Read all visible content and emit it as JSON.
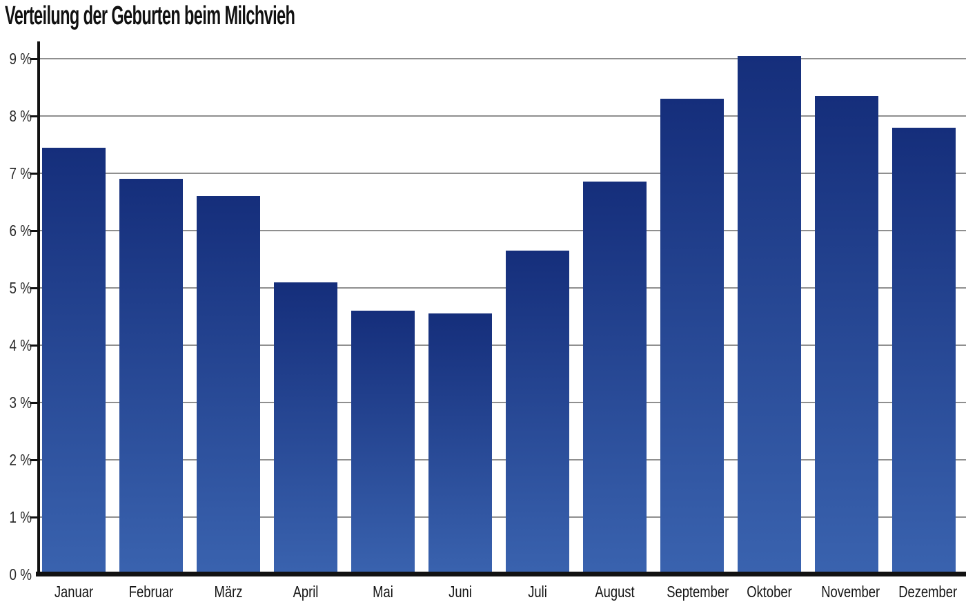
{
  "title": "Verteilung der Geburten beim Milchvieh",
  "chart_data": {
    "type": "bar",
    "title": "Verteilung der Geburten beim Milchvieh",
    "xlabel": "",
    "ylabel": "",
    "unit": "%",
    "categories": [
      "Januar",
      "Februar",
      "März",
      "April",
      "Mai",
      "Juni",
      "Juli",
      "August",
      "September",
      "Oktober",
      "November",
      "Dezember"
    ],
    "values": [
      7.45,
      6.9,
      6.6,
      5.1,
      4.6,
      4.55,
      5.65,
      6.85,
      8.3,
      9.05,
      8.35,
      7.8
    ],
    "ylim": [
      0,
      9.3
    ],
    "ytick_step": 1,
    "ytick_labels": [
      "0 %",
      "1 %",
      "2 %",
      "3 %",
      "4 %",
      "5 %",
      "6 %",
      "7 %",
      "8 %",
      "9 %"
    ],
    "grid": true,
    "legend": false,
    "colors": {
      "bar_gradient_top": "#152e7b",
      "bar_gradient_bottom": "#3a63af",
      "gridline": "#8f8f8f",
      "axis": "#121212",
      "title_text": "#111111",
      "label_text": "#2a2a2a"
    }
  }
}
